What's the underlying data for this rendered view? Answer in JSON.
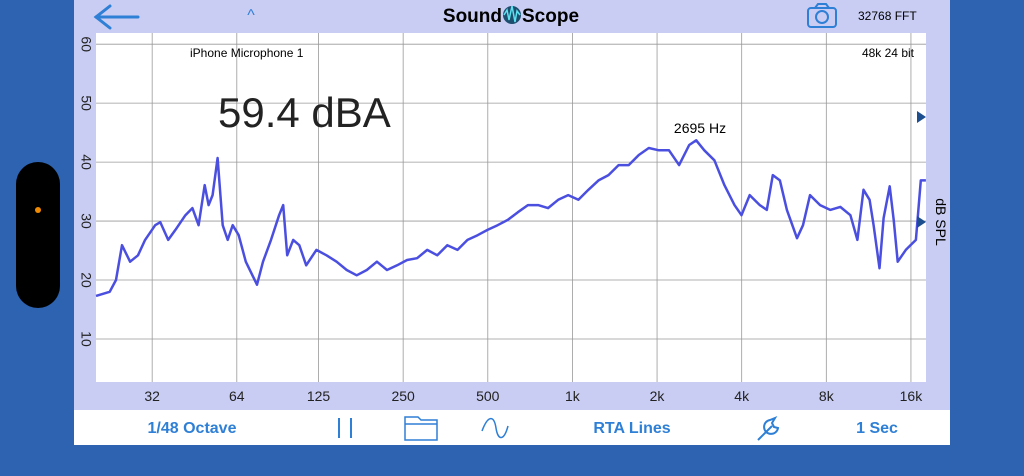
{
  "header": {
    "caret": "^",
    "logo_left": "Sound",
    "logo_right": "Scope",
    "fft": "32768 FFT"
  },
  "chart_data": {
    "type": "line",
    "xscale": "log",
    "grid": true,
    "device": "iPhone Microphone 1",
    "format": "48k 24 bit",
    "reading": "59.4 dBA",
    "peak_label": "2695 Hz",
    "y_label": "dB SPL",
    "xlim": [
      20.2,
      18100
    ],
    "ylim": [
      2.7,
      61.9
    ],
    "xticks": [
      32,
      64,
      125,
      250,
      500,
      {
        "value": 1000,
        "label": "1k"
      },
      {
        "value": 2000,
        "label": "2k"
      },
      {
        "value": 4000,
        "label": "4k"
      },
      {
        "value": 8000,
        "label": "8k"
      },
      {
        "value": 16000,
        "label": "16k"
      }
    ],
    "yticks": [
      10,
      20,
      30,
      40,
      50,
      60
    ],
    "x": [
      20.2,
      22.6,
      23.8,
      25,
      26.7,
      28.5,
      30.2,
      32.8,
      34.2,
      36.5,
      38.7,
      42,
      44.5,
      46.8,
      49.2,
      50.8,
      52.5,
      54.7,
      57,
      59.4,
      61.9,
      65,
      68.9,
      75.5,
      79.3,
      84.7,
      90.5,
      93.6,
      96.7,
      101.6,
      106.8,
      113,
      122.8,
      133.4,
      144.9,
      157.4,
      170.9,
      185.6,
      201.6,
      219,
      237.8,
      258.2,
      280.3,
      304.4,
      330.6,
      359,
      390,
      423.4,
      459.8,
      499,
      542,
      588.8,
      639.7,
      694.7,
      754.9,
      819,
      890,
      966,
      1050,
      1140,
      1238,
      1344,
      1460,
      1586,
      1722,
      1870,
      2031,
      2205,
      2396,
      2602,
      2757,
      2944,
      3198,
      3472,
      3772,
      3995,
      4270,
      4638,
      4913,
      5161,
      5468,
      5793,
      6291,
      6608,
      7000,
      7606,
      8262,
      8970,
      9742,
      10320,
      10848,
      11400,
      11780,
      12370,
      12790,
      13440,
      13890,
      14360,
      15340,
      16660,
      17350,
      18080
    ],
    "series": [
      {
        "color": "#4b4fe0",
        "values": [
          17.3,
          18.0,
          20.0,
          25.9,
          23.1,
          24.2,
          26.8,
          29.3,
          29.8,
          26.8,
          28.5,
          31.0,
          32.2,
          29.3,
          36.1,
          32.7,
          34.4,
          40.7,
          29.3,
          26.8,
          29.3,
          27.6,
          23.1,
          19.2,
          23.1,
          26.8,
          31.0,
          32.7,
          24.2,
          26.8,
          25.9,
          22.5,
          25.1,
          24.2,
          23.1,
          21.7,
          20.8,
          21.7,
          23.1,
          21.7,
          22.5,
          23.4,
          23.7,
          25.1,
          24.2,
          25.9,
          25.1,
          26.8,
          27.6,
          28.5,
          29.3,
          30.2,
          31.5,
          32.7,
          32.7,
          32.2,
          33.6,
          34.4,
          33.6,
          35.3,
          36.9,
          37.8,
          39.5,
          39.5,
          41.2,
          42.4,
          42.0,
          42.0,
          39.5,
          42.9,
          43.7,
          42.0,
          40.3,
          36.1,
          32.7,
          31.0,
          34.4,
          32.7,
          31.9,
          37.8,
          36.9,
          31.9,
          27.1,
          29.3,
          34.4,
          32.7,
          31.9,
          32.4,
          31.0,
          26.8,
          35.3,
          33.6,
          29.3,
          22.0,
          30.5,
          35.9,
          30.2,
          23.1,
          25.1,
          26.8,
          36.9,
          36.9
        ]
      }
    ]
  },
  "toolbar": {
    "octave": "1/48 Octave",
    "mode": "RTA Lines",
    "interval": "1 Sec"
  }
}
